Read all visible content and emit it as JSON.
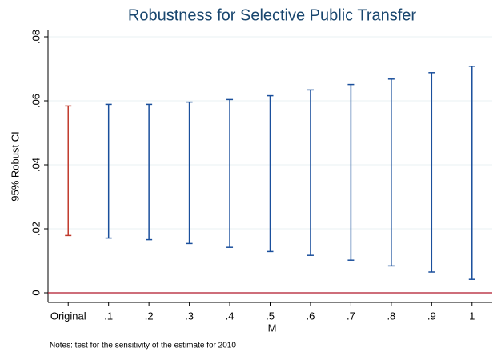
{
  "chart_data": {
    "type": "rcap",
    "title": "Robustness for Selective Public Transfer",
    "y_label": "95% Robust CI",
    "x_label": "M",
    "note": "Notes: test for the sensitivity of the estimate for 2010",
    "categories": [
      "Original",
      ".1",
      ".2",
      ".3",
      ".4",
      ".5",
      ".6",
      ".7",
      ".8",
      ".9",
      "1"
    ],
    "lower": [
      0.0179,
      0.0171,
      0.0166,
      0.0154,
      0.0142,
      0.0129,
      0.0117,
      0.0102,
      0.0084,
      0.0065,
      0.0042
    ],
    "upper": [
      0.0584,
      0.0589,
      0.0589,
      0.0596,
      0.0604,
      0.0616,
      0.0634,
      0.0651,
      0.0668,
      0.0688,
      0.0708
    ],
    "colors": [
      "#c0392b",
      "#1a4f9c",
      "#1a4f9c",
      "#1a4f9c",
      "#1a4f9c",
      "#1a4f9c",
      "#1a4f9c",
      "#1a4f9c",
      "#1a4f9c",
      "#1a4f9c",
      "#1a4f9c"
    ],
    "ylim": [
      -0.003,
      0.082
    ],
    "yticks": [
      0,
      {
        "value": 0.02,
        "label": ".02"
      },
      {
        "value": 0.04,
        "label": ".04"
      },
      {
        "value": 0.06,
        "label": ".06"
      },
      {
        "value": 0.08,
        "label": ".08"
      }
    ],
    "grid": true,
    "hline": 0,
    "hline_color": "#b0182a"
  }
}
